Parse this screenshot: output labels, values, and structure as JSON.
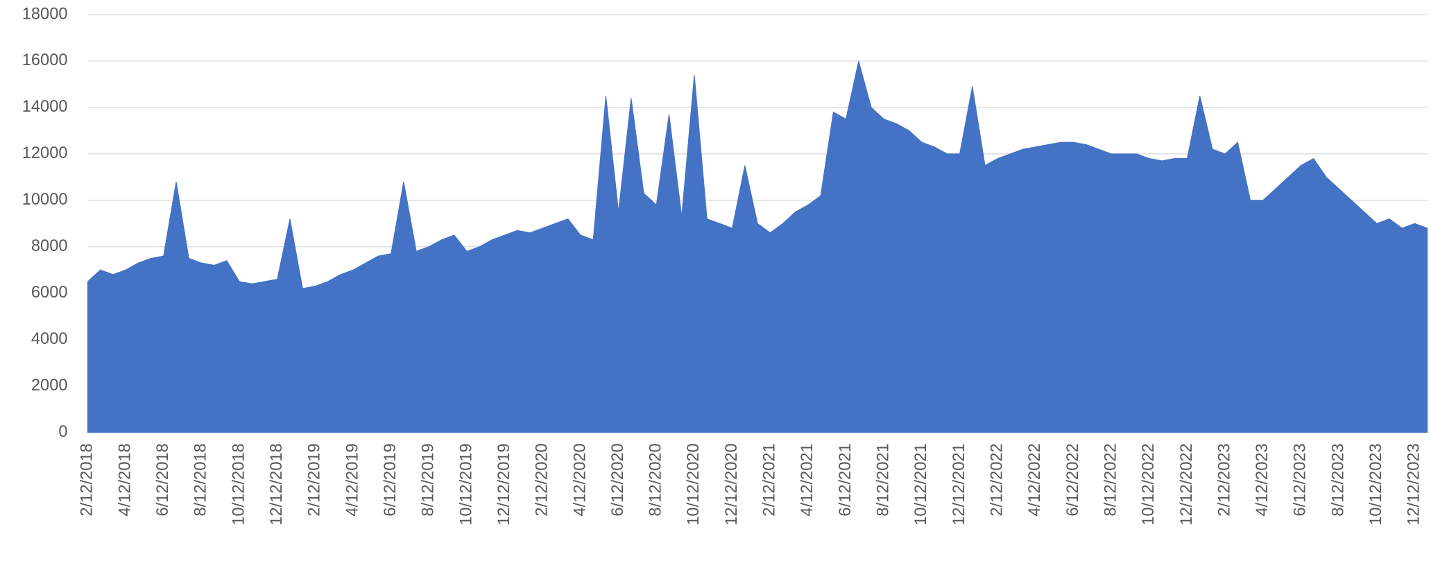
{
  "chart_data": {
    "type": "area",
    "categories": [
      "2/12/2018",
      null,
      null,
      "4/12/2018",
      null,
      null,
      "6/12/2018",
      null,
      null,
      "8/12/2018",
      null,
      null,
      "10/12/2018",
      null,
      null,
      "12/12/2018",
      null,
      null,
      "2/12/2019",
      null,
      null,
      "4/12/2019",
      null,
      null,
      "6/12/2019",
      null,
      null,
      "8/12/2019",
      null,
      null,
      "10/12/2019",
      null,
      null,
      "12/12/2019",
      null,
      null,
      "2/12/2020",
      null,
      null,
      "4/12/2020",
      null,
      null,
      "6/12/2020",
      null,
      null,
      "8/12/2020",
      null,
      null,
      "10/12/2020",
      null,
      null,
      "12/12/2020",
      null,
      null,
      "2/12/2021",
      null,
      null,
      "4/12/2021",
      null,
      null,
      "6/12/2021",
      null,
      null,
      "8/12/2021",
      null,
      null,
      "10/12/2021",
      null,
      null,
      "12/12/2021",
      null,
      null,
      "2/12/2022",
      null,
      null,
      "4/12/2022",
      null,
      null,
      "6/12/2022",
      null,
      null,
      "8/12/2022",
      null,
      null,
      "10/12/2022",
      null,
      null,
      "12/12/2022",
      null,
      null,
      "2/12/2023",
      null,
      null,
      "4/12/2023",
      null,
      null,
      "6/12/2023",
      null,
      null,
      "8/12/2023",
      null,
      null,
      "10/12/2023",
      null,
      null,
      "12/12/2023",
      null
    ],
    "values": [
      6500,
      7000,
      6800,
      7000,
      7300,
      7500,
      7600,
      10800,
      7500,
      7300,
      7200,
      7400,
      6500,
      6400,
      6500,
      6600,
      9200,
      6200,
      6300,
      6500,
      6800,
      7000,
      7300,
      7600,
      7700,
      10800,
      7800,
      8000,
      8300,
      8500,
      7800,
      8000,
      8300,
      8500,
      8700,
      8600,
      8800,
      9000,
      9200,
      8500,
      8300,
      14500,
      9500,
      14400,
      10300,
      9800,
      13700,
      9300,
      15400,
      9200,
      9000,
      8800,
      11500,
      9000,
      8600,
      9000,
      9500,
      9800,
      10200,
      13800,
      13500,
      16000,
      14000,
      13500,
      13300,
      13000,
      12500,
      12300,
      12000,
      12000,
      14900,
      11500,
      11800,
      12000,
      12200,
      12300,
      12400,
      12500,
      12500,
      12400,
      12200,
      12000,
      12000,
      12000,
      11800,
      11700,
      11800,
      11800,
      14500,
      12200,
      12000,
      12500,
      10000,
      10000,
      10500,
      11000,
      11500,
      11800,
      11000,
      10500,
      10000,
      9500,
      9000,
      9200,
      8800,
      9000,
      8800
    ],
    "color": "#4472c4",
    "ylim": [
      0,
      18000
    ],
    "yticks": [
      0,
      2000,
      4000,
      6000,
      8000,
      10000,
      12000,
      14000,
      16000,
      18000
    ],
    "grid": true
  }
}
